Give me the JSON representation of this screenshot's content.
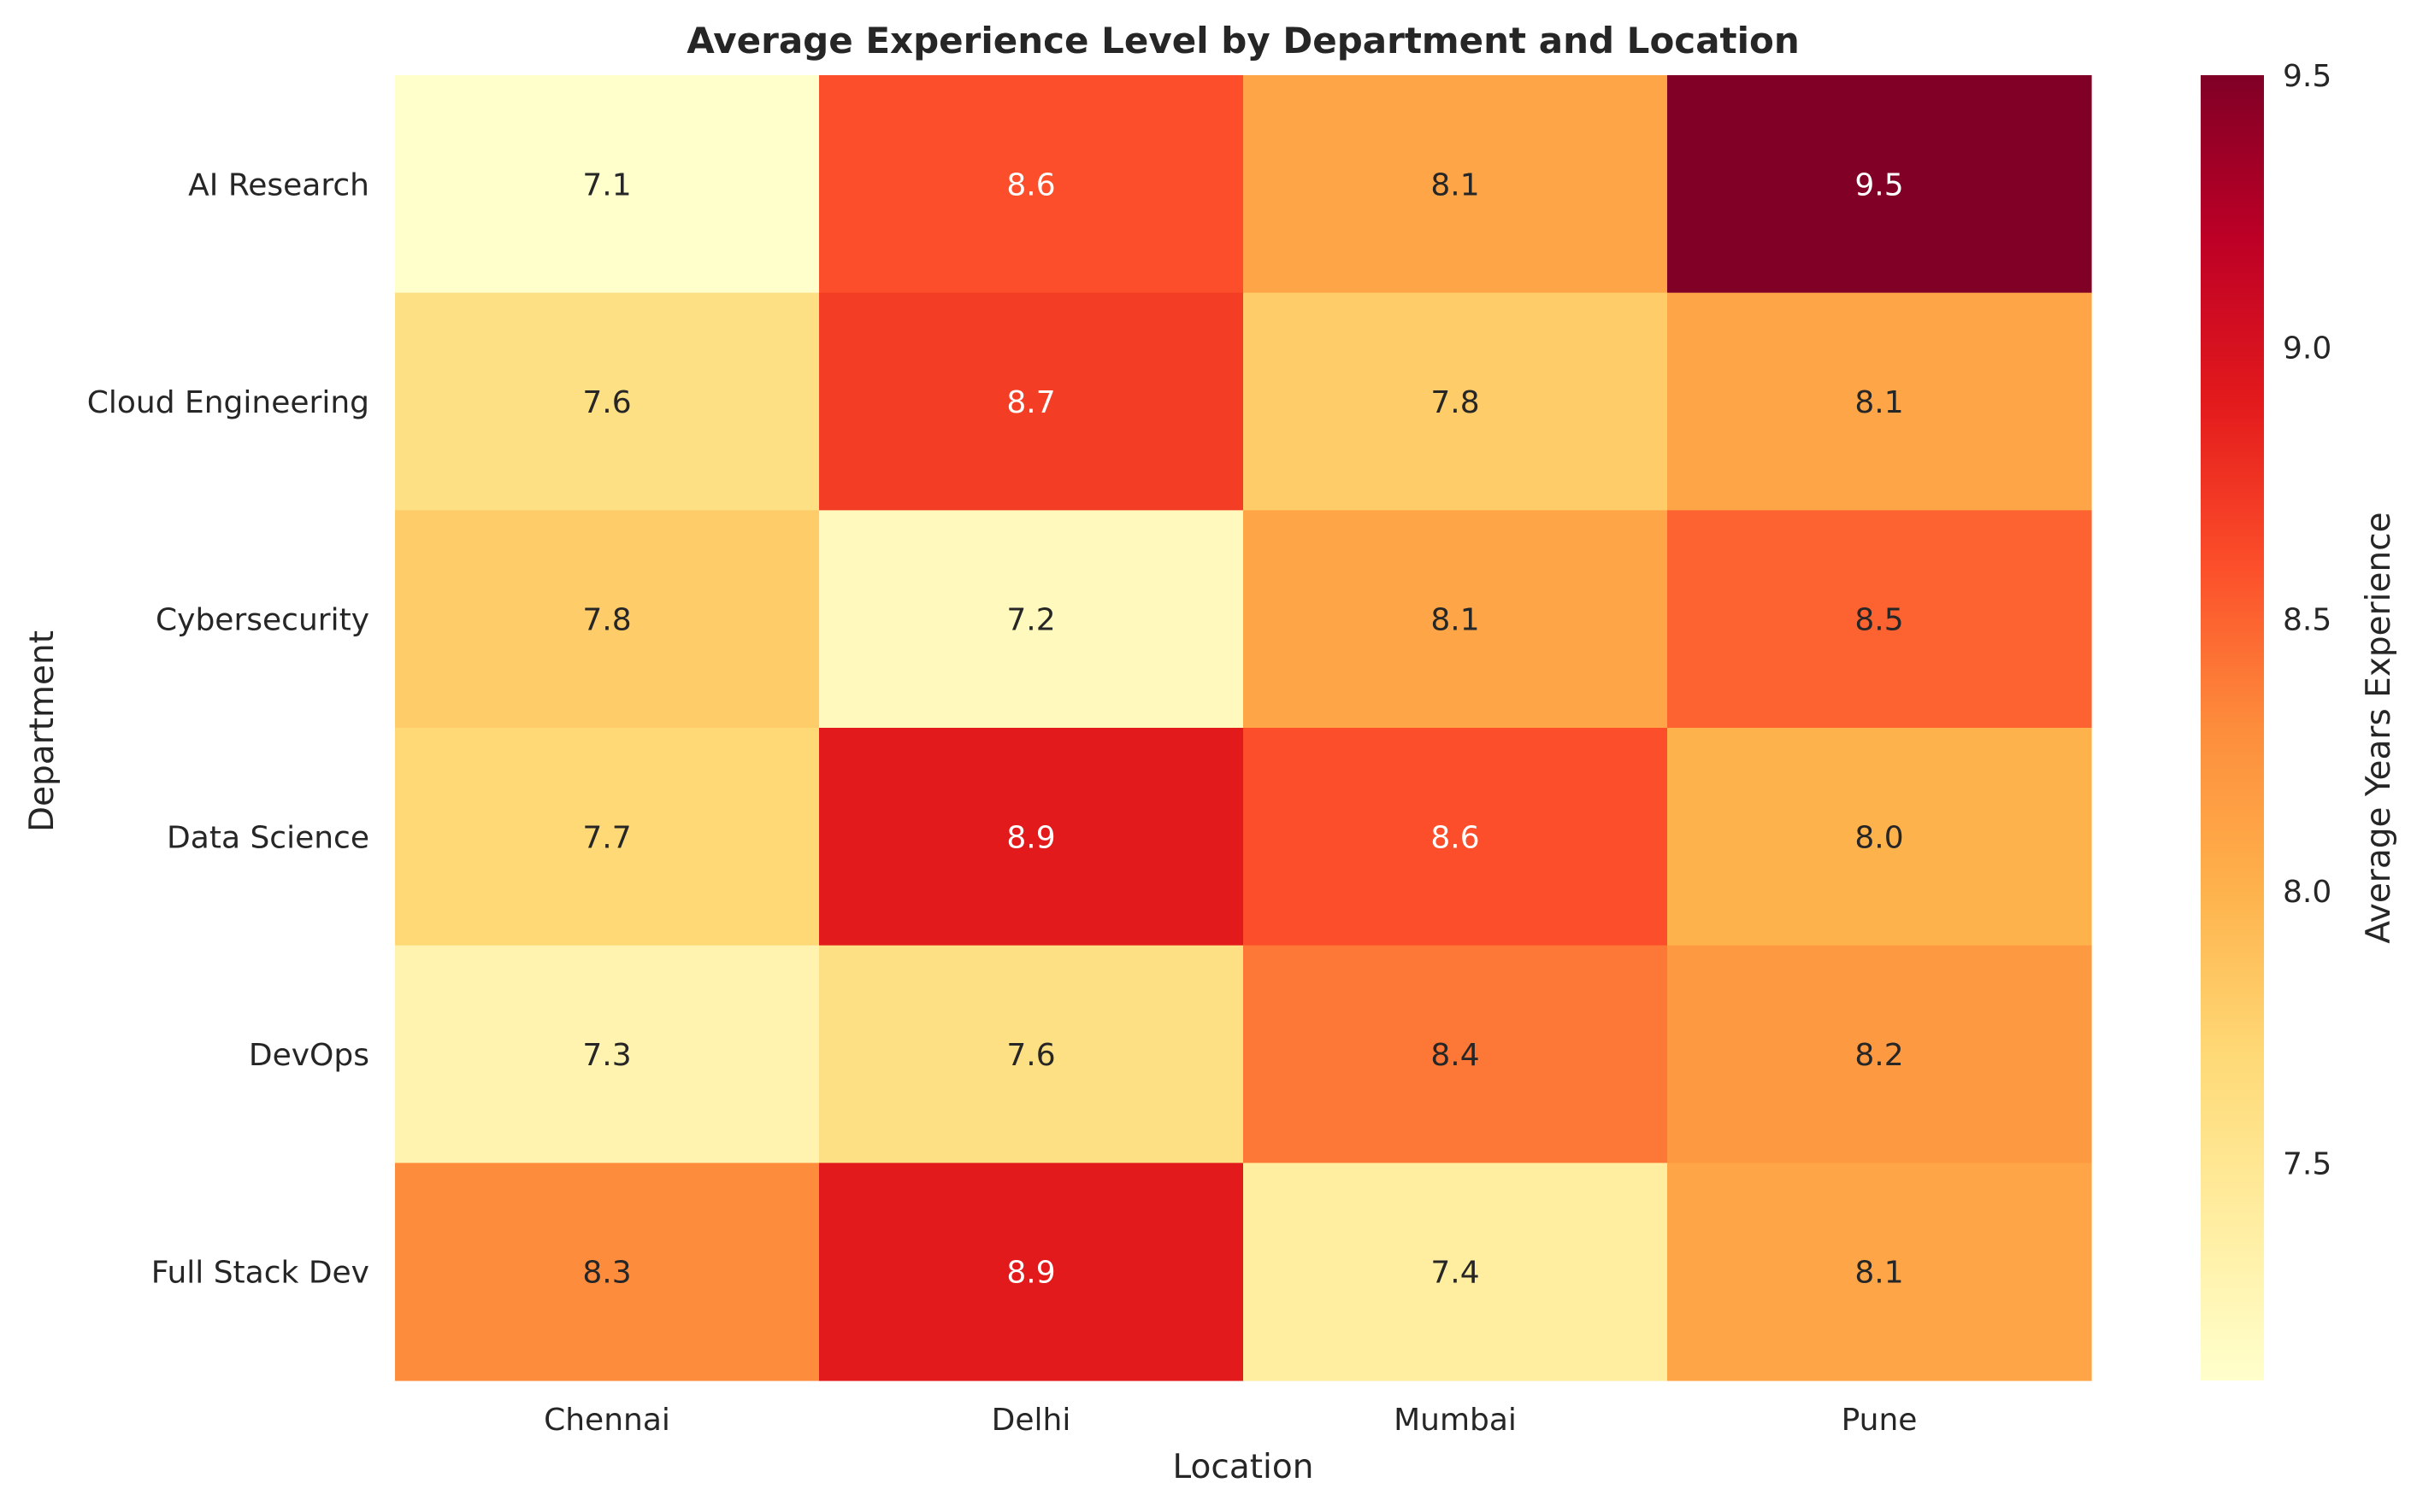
{
  "chart_data": {
    "type": "heatmap",
    "title": "Average Experience Level by Department and Location",
    "xlabel": "Location",
    "ylabel": "Department",
    "x_categories": [
      "Chennai",
      "Delhi",
      "Mumbai",
      "Pune"
    ],
    "y_categories": [
      "AI Research",
      "Cloud Engineering",
      "Cybersecurity",
      "Data Science",
      "DevOps",
      "Full Stack Dev"
    ],
    "values": [
      [
        7.1,
        8.6,
        8.1,
        9.5
      ],
      [
        7.6,
        8.7,
        7.8,
        8.1
      ],
      [
        7.8,
        7.2,
        8.1,
        8.5
      ],
      [
        7.7,
        8.9,
        8.6,
        8.0
      ],
      [
        7.3,
        7.6,
        8.4,
        8.2
      ],
      [
        8.3,
        8.9,
        7.4,
        8.1
      ]
    ],
    "colormap": "YlOrRd",
    "colorbar": {
      "label": "Average Years Experience",
      "range": [
        7.1,
        9.5
      ],
      "ticks": [
        7.5,
        8.0,
        8.5,
        9.0,
        9.5
      ],
      "tick_labels": [
        "7.5",
        "8.0",
        "8.5",
        "9.0",
        "9.5"
      ]
    },
    "annotations": true,
    "grid": false
  }
}
